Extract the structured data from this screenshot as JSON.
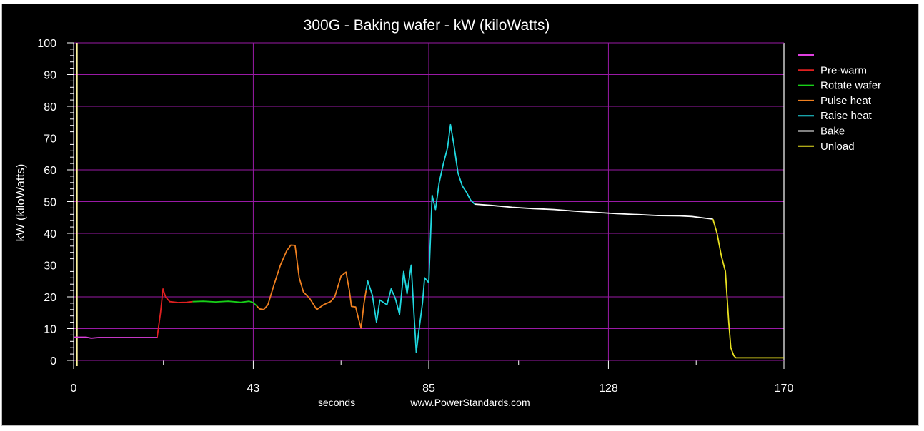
{
  "chart_data": {
    "type": "line",
    "title": "300G - Baking wafer - kW (kiloWatts)",
    "xlabel": "seconds",
    "ylabel": "kW (kiloWatts)",
    "footer": "www.PowerStandards.com",
    "xlim": [
      0,
      170
    ],
    "ylim": [
      0,
      100
    ],
    "x_ticks": [
      0,
      43,
      85,
      128,
      170
    ],
    "y_ticks": [
      0,
      10,
      20,
      30,
      40,
      50,
      60,
      70,
      80,
      90,
      100
    ],
    "grid": true,
    "legend_position": "right",
    "series": [
      {
        "name": "",
        "color": "#e040e0",
        "points": [
          [
            0,
            7.3
          ],
          [
            3,
            7.3
          ],
          [
            4.2,
            7.0
          ],
          [
            6,
            7.2
          ],
          [
            9,
            7.2
          ],
          [
            13,
            7.2
          ],
          [
            17,
            7.2
          ],
          [
            20,
            7.2
          ]
        ]
      },
      {
        "name": "Pre-warm",
        "color": "#e02020",
        "points": [
          [
            20,
            7.2
          ],
          [
            20.8,
            15
          ],
          [
            21.4,
            22.5
          ],
          [
            22,
            20
          ],
          [
            23,
            18.5
          ],
          [
            25,
            18.2
          ],
          [
            27,
            18.3
          ],
          [
            28.5,
            18.5
          ]
        ]
      },
      {
        "name": "Rotate wafer",
        "color": "#18d018",
        "points": [
          [
            28.5,
            18.5
          ],
          [
            31,
            18.6
          ],
          [
            34,
            18.4
          ],
          [
            37,
            18.6
          ],
          [
            40,
            18.3
          ],
          [
            42,
            18.6
          ],
          [
            43,
            18.2
          ],
          [
            43.8,
            17.2
          ]
        ]
      },
      {
        "name": "Pulse heat",
        "color": "#f08020",
        "points": [
          [
            43.8,
            17.2
          ],
          [
            44.5,
            16.2
          ],
          [
            45.5,
            16
          ],
          [
            46.5,
            17.5
          ],
          [
            48,
            24
          ],
          [
            49.5,
            30
          ],
          [
            51,
            34.5
          ],
          [
            52,
            36.3
          ],
          [
            53,
            36.2
          ],
          [
            54,
            26
          ],
          [
            55,
            21.5
          ],
          [
            56.5,
            19.5
          ],
          [
            58.2,
            16
          ],
          [
            59.8,
            17.5
          ],
          [
            61.5,
            18.5
          ],
          [
            62.5,
            20
          ],
          [
            64,
            26.5
          ],
          [
            65.2,
            27.8
          ],
          [
            66,
            22
          ],
          [
            66.5,
            17
          ],
          [
            67.5,
            16.8
          ],
          [
            68.2,
            13
          ],
          [
            68.8,
            10.2
          ],
          [
            69.5,
            18
          ],
          [
            70,
            22
          ]
        ]
      },
      {
        "name": "Raise heat",
        "color": "#20d8e0",
        "points": [
          [
            70,
            22
          ],
          [
            70.4,
            25
          ],
          [
            71.5,
            20.5
          ],
          [
            72.5,
            12
          ],
          [
            73.3,
            19
          ],
          [
            75,
            17.5
          ],
          [
            76,
            22.5
          ],
          [
            77,
            19.5
          ],
          [
            78,
            14.5
          ],
          [
            79,
            28
          ],
          [
            79.8,
            21
          ],
          [
            80.8,
            30
          ],
          [
            81.5,
            14
          ],
          [
            82,
            2.5
          ],
          [
            82.5,
            8
          ],
          [
            83.5,
            18
          ],
          [
            84,
            26
          ],
          [
            85,
            24.5
          ],
          [
            85.8,
            52
          ],
          [
            86.6,
            47.5
          ],
          [
            87.5,
            56
          ],
          [
            88.5,
            62
          ],
          [
            89.5,
            67
          ],
          [
            90.2,
            74.2
          ],
          [
            91,
            68
          ],
          [
            92,
            59
          ],
          [
            93,
            55
          ],
          [
            94,
            53
          ],
          [
            95,
            50.5
          ],
          [
            96,
            49.2
          ]
        ]
      },
      {
        "name": "Bake",
        "color": "#ffffff",
        "points": [
          [
            96,
            49.2
          ],
          [
            100,
            48.8
          ],
          [
            105,
            48.2
          ],
          [
            110,
            47.8
          ],
          [
            115,
            47.5
          ],
          [
            120,
            47
          ],
          [
            125,
            46.6
          ],
          [
            130,
            46.2
          ],
          [
            135,
            45.9
          ],
          [
            140,
            45.6
          ],
          [
            145,
            45.5
          ],
          [
            148,
            45.3
          ],
          [
            151,
            44.8
          ],
          [
            153,
            44.5
          ]
        ]
      },
      {
        "name": "Unload",
        "color": "#e8e020",
        "points": [
          [
            153,
            44.5
          ],
          [
            154,
            40
          ],
          [
            155,
            33
          ],
          [
            156,
            28
          ],
          [
            156.8,
            12
          ],
          [
            157.3,
            4
          ],
          [
            158,
            1.5
          ],
          [
            158.5,
            0.8
          ],
          [
            160,
            0.8
          ],
          [
            162,
            0.8
          ],
          [
            165,
            0.8
          ],
          [
            170,
            0.8
          ]
        ]
      }
    ]
  }
}
